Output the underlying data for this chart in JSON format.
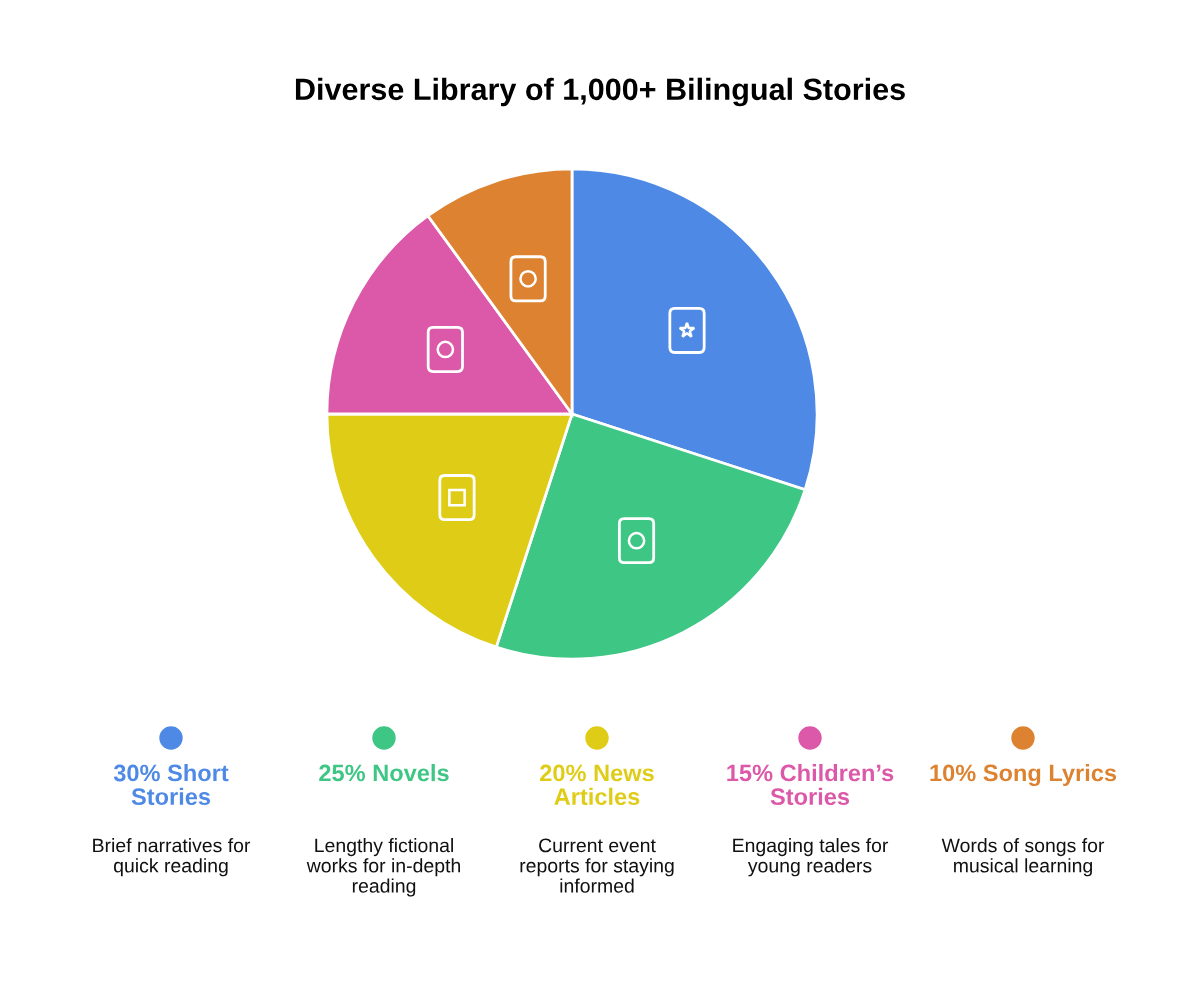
{
  "chart_data": {
    "type": "pie",
    "title": "Diverse Library of 1,000+ Bilingual Stories",
    "categories": [
      "Short Stories",
      "Novels",
      "News Articles",
      "Children’s Stories",
      "Song Lyrics"
    ],
    "values": [
      30,
      25,
      20,
      15,
      10
    ],
    "value_labels": [
      "30%",
      "25%",
      "20%",
      "15%",
      "10%"
    ],
    "colors": [
      "#4e89e6",
      "#3ec684",
      "#dfcc17",
      "#dc58a8",
      "#dd8230"
    ],
    "annotations": [
      "Brief narratives for quick reading",
      "Lengthy fictional works for in-depth reading",
      "Current event reports for staying informed",
      "Engaging tales for young readers",
      "Words of songs for musical learning"
    ],
    "legend": "bottom"
  }
}
